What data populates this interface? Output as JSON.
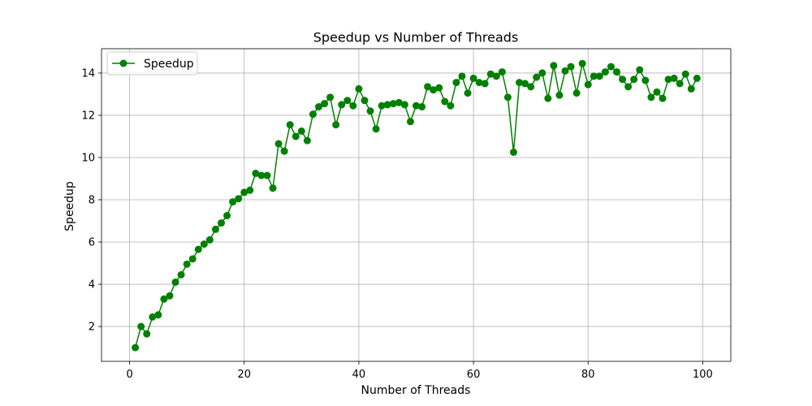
{
  "chart_data": {
    "type": "line",
    "title": "Speedup vs Number of Threads",
    "xlabel": "Number of Threads",
    "ylabel": "Speedup",
    "xlim": [
      -4.9,
      104.9
    ],
    "ylim": [
      0.35,
      15.15
    ],
    "xticks": [
      0,
      20,
      40,
      60,
      80,
      100
    ],
    "yticks": [
      2,
      4,
      6,
      8,
      10,
      12,
      14
    ],
    "grid": true,
    "legend_position": "top-left",
    "series": [
      {
        "name": "Speedup",
        "color": "#008000",
        "marker": "circle",
        "x": [
          1,
          2,
          3,
          4,
          5,
          6,
          7,
          8,
          9,
          10,
          11,
          12,
          13,
          14,
          15,
          16,
          17,
          18,
          19,
          20,
          21,
          22,
          23,
          24,
          25,
          26,
          27,
          28,
          29,
          30,
          31,
          32,
          33,
          34,
          35,
          36,
          37,
          38,
          39,
          40,
          41,
          42,
          43,
          44,
          45,
          46,
          47,
          48,
          49,
          50,
          51,
          52,
          53,
          54,
          55,
          56,
          57,
          58,
          59,
          60,
          61,
          62,
          63,
          64,
          65,
          66,
          67,
          68,
          69,
          70,
          71,
          72,
          73,
          74,
          75,
          76,
          77,
          78,
          79,
          80,
          81,
          82,
          83,
          84,
          85,
          86,
          87,
          88,
          89,
          90,
          91,
          92,
          93,
          94,
          95,
          96,
          97,
          98,
          99
        ],
        "y": [
          1.0,
          2.0,
          1.65,
          2.45,
          2.55,
          3.3,
          3.45,
          4.1,
          4.45,
          4.95,
          5.2,
          5.65,
          5.9,
          6.1,
          6.6,
          6.9,
          7.25,
          7.9,
          8.05,
          8.35,
          8.45,
          9.25,
          9.15,
          9.15,
          8.55,
          10.65,
          10.3,
          11.55,
          11.0,
          11.25,
          10.8,
          12.05,
          12.4,
          12.55,
          12.85,
          11.55,
          12.5,
          12.7,
          12.45,
          13.25,
          12.7,
          12.2,
          11.35,
          12.45,
          12.5,
          12.55,
          12.6,
          12.5,
          11.7,
          12.45,
          12.4,
          13.35,
          13.2,
          13.3,
          12.65,
          12.45,
          13.55,
          13.85,
          13.05,
          13.75,
          13.55,
          13.5,
          13.95,
          13.85,
          14.05,
          12.85,
          10.25,
          13.55,
          13.5,
          13.35,
          13.8,
          14.0,
          12.8,
          14.35,
          12.95,
          14.1,
          14.3,
          13.05,
          14.45,
          13.45,
          13.85,
          13.85,
          14.05,
          14.3,
          14.05,
          13.7,
          13.35,
          13.7,
          14.15,
          13.65,
          12.85,
          13.1,
          12.8,
          13.7,
          13.75,
          13.5,
          13.95,
          13.25,
          13.75
        ]
      }
    ]
  }
}
